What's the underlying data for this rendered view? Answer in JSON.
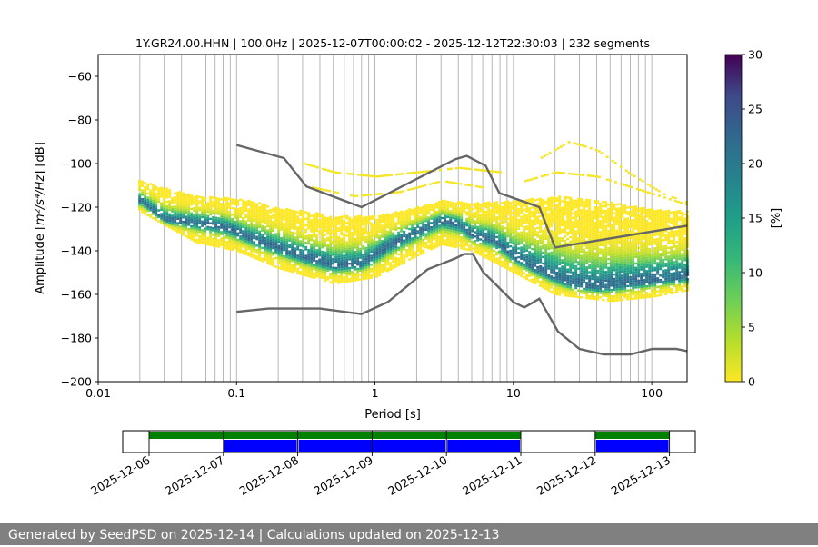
{
  "chart_data": [
    {
      "type": "heatmap",
      "title": "1Y.GR24.00.HHN | 100.0Hz | 2025-12-07T00:00:02 - 2025-12-12T22:30:03 | 232 segments",
      "xlabel": "Period [s]",
      "ylabel_prefix": "Amplitude [",
      "ylabel_math": "m²/s⁴/Hz",
      "ylabel_suffix": "] [dB]",
      "xscale": "log",
      "xlim": [
        0.01,
        180
      ],
      "ylim": [
        -200,
        -50
      ],
      "x_ticks": [
        0.01,
        0.1,
        1,
        10,
        100
      ],
      "x_tick_labels": [
        "0.01",
        "0.1",
        "1",
        "10",
        "100"
      ],
      "y_ticks": [
        -200,
        -180,
        -160,
        -140,
        -120,
        -100,
        -80,
        -60
      ],
      "y_tick_labels": [
        "−200",
        "−180",
        "−160",
        "−140",
        "−120",
        "−100",
        "−80",
        "−60"
      ],
      "grid": "x",
      "colorbar": {
        "label": "[%]",
        "range": [
          0,
          30
        ],
        "ticks": [
          0,
          5,
          10,
          15,
          20,
          25,
          30
        ],
        "tick_labels": [
          "0",
          "5",
          "10",
          "15",
          "20",
          "25",
          "30"
        ],
        "colormap": "viridis_r"
      },
      "mode_curve": [
        [
          0.02,
          -117
        ],
        [
          0.03,
          -126
        ],
        [
          0.05,
          -127
        ],
        [
          0.08,
          -129
        ],
        [
          0.12,
          -134
        ],
        [
          0.2,
          -139
        ],
        [
          0.3,
          -143
        ],
        [
          0.5,
          -147
        ],
        [
          0.8,
          -146
        ],
        [
          1.2,
          -138
        ],
        [
          2,
          -131
        ],
        [
          3,
          -126
        ],
        [
          4,
          -128
        ],
        [
          5,
          -133
        ],
        [
          7,
          -135
        ],
        [
          10,
          -143
        ],
        [
          15,
          -149
        ],
        [
          25,
          -155
        ],
        [
          40,
          -157
        ],
        [
          70,
          -155
        ],
        [
          120,
          -153
        ],
        [
          180,
          -152
        ]
      ],
      "spread_upper": [
        [
          0.02,
          -108
        ],
        [
          0.05,
          -115
        ],
        [
          0.1,
          -116
        ],
        [
          0.2,
          -120
        ],
        [
          0.5,
          -124
        ],
        [
          1,
          -124
        ],
        [
          2,
          -120
        ],
        [
          3,
          -117
        ],
        [
          5,
          -118
        ],
        [
          10,
          -117
        ],
        [
          20,
          -115
        ],
        [
          50,
          -118
        ],
        [
          100,
          -121
        ],
        [
          180,
          -122
        ]
      ],
      "spread_lower": [
        [
          0.02,
          -122
        ],
        [
          0.05,
          -136
        ],
        [
          0.1,
          -140
        ],
        [
          0.2,
          -148
        ],
        [
          0.5,
          -155
        ],
        [
          1,
          -152
        ],
        [
          2,
          -142
        ],
        [
          3,
          -137
        ],
        [
          5,
          -140
        ],
        [
          10,
          -150
        ],
        [
          20,
          -160
        ],
        [
          50,
          -163
        ],
        [
          100,
          -161
        ],
        [
          180,
          -158
        ]
      ],
      "extra_lines": [
        {
          "name": "",
          "points": [
            [
              0.3,
              -100
            ],
            [
              0.5,
              -104
            ],
            [
              1,
              -106
            ],
            [
              2,
              -104
            ],
            [
              4,
              -102
            ],
            [
              8,
              -104
            ]
          ]
        },
        {
          "name": "",
          "points": [
            [
              0.35,
              -111
            ],
            [
              0.7,
              -115
            ],
            [
              1.5,
              -113
            ],
            [
              3,
              -108
            ],
            [
              6,
              -111
            ]
          ]
        },
        {
          "name": "",
          "points": [
            [
              15,
              -98
            ],
            [
              25,
              -90
            ],
            [
              40,
              -94
            ],
            [
              70,
              -105
            ],
            [
              120,
              -114
            ],
            [
              180,
              -118
            ]
          ]
        },
        {
          "name": "",
          "points": [
            [
              12,
              -108
            ],
            [
              20,
              -104
            ],
            [
              40,
              -106
            ],
            [
              80,
              -112
            ],
            [
              180,
              -119
            ]
          ]
        }
      ],
      "noise_model_high": [
        [
          0.1,
          -91.5
        ],
        [
          0.22,
          -97.5
        ],
        [
          0.32,
          -110.5
        ],
        [
          0.8,
          -120
        ],
        [
          3.8,
          -98
        ],
        [
          4.6,
          -96.5
        ],
        [
          6.3,
          -101
        ],
        [
          7.9,
          -113.5
        ],
        [
          15.4,
          -120
        ],
        [
          20,
          -138.5
        ],
        [
          180,
          -128.5
        ]
      ],
      "noise_model_low": [
        [
          0.1,
          -168
        ],
        [
          0.17,
          -166.5
        ],
        [
          0.4,
          -166.5
        ],
        [
          0.8,
          -169
        ],
        [
          1.24,
          -163.5
        ],
        [
          2.4,
          -148.5
        ],
        [
          3.8,
          -143.5
        ],
        [
          4.4,
          -141.5
        ],
        [
          5.1,
          -141.5
        ],
        [
          6.0,
          -149.5
        ],
        [
          10,
          -163.5
        ],
        [
          12,
          -166
        ],
        [
          15.4,
          -162
        ],
        [
          21,
          -177
        ],
        [
          30,
          -185
        ],
        [
          45,
          -187.5
        ],
        [
          70,
          -187.5
        ],
        [
          101,
          -185
        ],
        [
          150,
          -185
        ],
        [
          180,
          -186
        ]
      ]
    },
    {
      "type": "timeline",
      "x_ticks": [
        "2025-12-06",
        "2025-12-07",
        "2025-12-08",
        "2025-12-09",
        "2025-12-10",
        "2025-12-11",
        "2025-12-12",
        "2025-12-13"
      ],
      "green_bars": [
        [
          "2025-12-06",
          "2025-12-11"
        ],
        [
          "2025-12-12",
          "2025-12-13"
        ]
      ],
      "blue_bars": [
        [
          "2025-12-07",
          "2025-12-08"
        ],
        [
          "2025-12-08",
          "2025-12-10"
        ],
        [
          "2025-12-10",
          "2025-12-11"
        ],
        [
          "2025-12-12",
          "2025-12-13"
        ]
      ],
      "colors": {
        "green": "#008000",
        "blue": "#0000ff"
      }
    }
  ],
  "footer": {
    "text": "Generated by SeedPSD on 2025-12-14 | Calculations updated on 2025-12-13"
  },
  "colors": {
    "noise_model": "#666666",
    "grid": "#b0b0b0",
    "footer_bg": "#808080"
  }
}
